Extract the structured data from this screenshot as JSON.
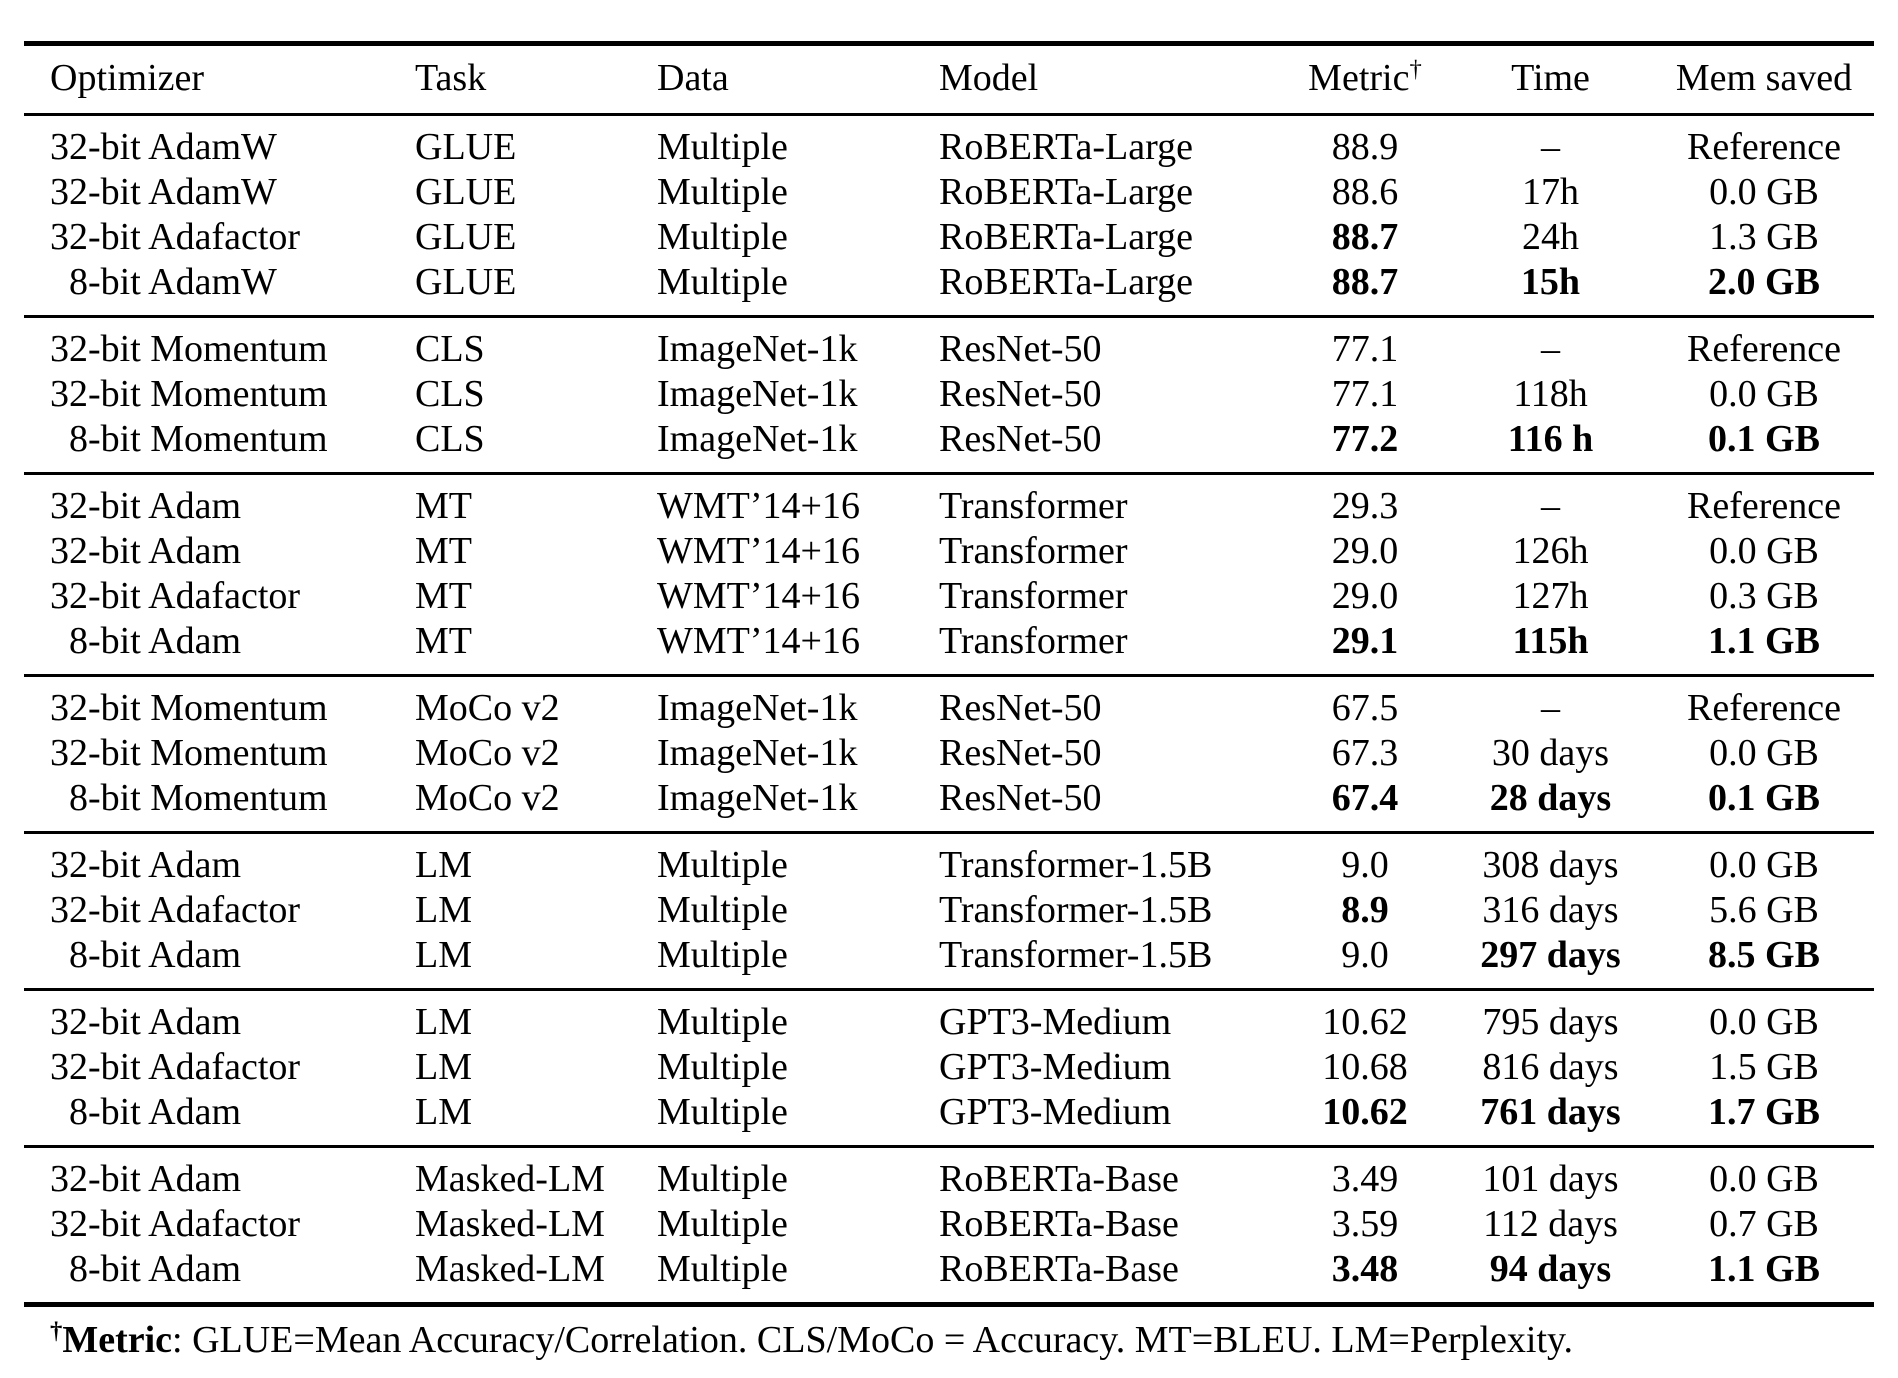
{
  "table": {
    "columns": [
      {
        "label": "Optimizer",
        "align": "left"
      },
      {
        "label": "Task",
        "align": "left"
      },
      {
        "label": "Data",
        "align": "left"
      },
      {
        "label": "Model",
        "align": "left"
      },
      {
        "label": "Metric",
        "sup": "†",
        "align": "center"
      },
      {
        "label": "Time",
        "align": "center"
      },
      {
        "label": "Mem saved",
        "align": "center"
      }
    ],
    "groups": [
      {
        "rows": [
          {
            "indent": false,
            "cells": [
              "32-bit AdamW",
              "GLUE",
              "Multiple",
              "RoBERTa-Large",
              "88.9",
              "–",
              "Reference"
            ],
            "bold": []
          },
          {
            "indent": false,
            "cells": [
              "32-bit AdamW",
              "GLUE",
              "Multiple",
              "RoBERTa-Large",
              "88.6",
              "17h",
              "0.0 GB"
            ],
            "bold": []
          },
          {
            "indent": false,
            "cells": [
              "32-bit Adafactor",
              "GLUE",
              "Multiple",
              "RoBERTa-Large",
              "88.7",
              "24h",
              "1.3 GB"
            ],
            "bold": [
              4
            ]
          },
          {
            "indent": true,
            "cells": [
              "8-bit AdamW",
              "GLUE",
              "Multiple",
              "RoBERTa-Large",
              "88.7",
              "15h",
              "2.0 GB"
            ],
            "bold": [
              4,
              5,
              6
            ]
          }
        ]
      },
      {
        "rows": [
          {
            "indent": false,
            "cells": [
              "32-bit Momentum",
              "CLS",
              "ImageNet-1k",
              "ResNet-50",
              "77.1",
              "–",
              "Reference"
            ],
            "bold": []
          },
          {
            "indent": false,
            "cells": [
              "32-bit Momentum",
              "CLS",
              "ImageNet-1k",
              "ResNet-50",
              "77.1",
              "118h",
              "0.0 GB"
            ],
            "bold": []
          },
          {
            "indent": true,
            "cells": [
              "8-bit Momentum",
              "CLS",
              "ImageNet-1k",
              "ResNet-50",
              "77.2",
              "116 h",
              "0.1 GB"
            ],
            "bold": [
              4,
              5,
              6
            ]
          }
        ]
      },
      {
        "rows": [
          {
            "indent": false,
            "cells": [
              "32-bit Adam",
              "MT",
              "WMT’14+16",
              "Transformer",
              "29.3",
              "–",
              "Reference"
            ],
            "bold": []
          },
          {
            "indent": false,
            "cells": [
              "32-bit Adam",
              "MT",
              "WMT’14+16",
              "Transformer",
              "29.0",
              "126h",
              "0.0 GB"
            ],
            "bold": []
          },
          {
            "indent": false,
            "cells": [
              "32-bit Adafactor",
              "MT",
              "WMT’14+16",
              "Transformer",
              "29.0",
              "127h",
              "0.3 GB"
            ],
            "bold": []
          },
          {
            "indent": true,
            "cells": [
              "8-bit Adam",
              "MT",
              "WMT’14+16",
              "Transformer",
              "29.1",
              "115h",
              "1.1 GB"
            ],
            "bold": [
              4,
              5,
              6
            ]
          }
        ]
      },
      {
        "rows": [
          {
            "indent": false,
            "cells": [
              "32-bit Momentum",
              "MoCo v2",
              "ImageNet-1k",
              "ResNet-50",
              "67.5",
              "–",
              "Reference"
            ],
            "bold": []
          },
          {
            "indent": false,
            "cells": [
              "32-bit Momentum",
              "MoCo v2",
              "ImageNet-1k",
              "ResNet-50",
              "67.3",
              "30 days",
              "0.0 GB"
            ],
            "bold": []
          },
          {
            "indent": true,
            "cells": [
              "8-bit Momentum",
              "MoCo v2",
              "ImageNet-1k",
              "ResNet-50",
              "67.4",
              "28 days",
              "0.1 GB"
            ],
            "bold": [
              4,
              5,
              6
            ]
          }
        ]
      },
      {
        "rows": [
          {
            "indent": false,
            "cells": [
              "32-bit Adam",
              "LM",
              "Multiple",
              "Transformer-1.5B",
              "9.0",
              "308 days",
              "0.0 GB"
            ],
            "bold": []
          },
          {
            "indent": false,
            "cells": [
              "32-bit Adafactor",
              "LM",
              "Multiple",
              "Transformer-1.5B",
              "8.9",
              "316 days",
              "5.6 GB"
            ],
            "bold": [
              4
            ]
          },
          {
            "indent": true,
            "cells": [
              "8-bit Adam",
              "LM",
              "Multiple",
              "Transformer-1.5B",
              "9.0",
              "297 days",
              "8.5 GB"
            ],
            "bold": [
              5,
              6
            ]
          }
        ]
      },
      {
        "rows": [
          {
            "indent": false,
            "cells": [
              "32-bit Adam",
              "LM",
              "Multiple",
              "GPT3-Medium",
              "10.62",
              "795 days",
              "0.0 GB"
            ],
            "bold": []
          },
          {
            "indent": false,
            "cells": [
              "32-bit Adafactor",
              "LM",
              "Multiple",
              "GPT3-Medium",
              "10.68",
              "816 days",
              "1.5 GB"
            ],
            "bold": []
          },
          {
            "indent": true,
            "cells": [
              "8-bit Adam",
              "LM",
              "Multiple",
              "GPT3-Medium",
              "10.62",
              "761 days",
              "1.7 GB"
            ],
            "bold": [
              4,
              5,
              6
            ]
          }
        ]
      },
      {
        "rows": [
          {
            "indent": false,
            "cells": [
              "32-bit Adam",
              "Masked-LM",
              "Multiple",
              "RoBERTa-Base",
              "3.49",
              "101 days",
              "0.0 GB"
            ],
            "bold": []
          },
          {
            "indent": false,
            "cells": [
              "32-bit Adafactor",
              "Masked-LM",
              "Multiple",
              "RoBERTa-Base",
              "3.59",
              "112 days",
              "0.7 GB"
            ],
            "bold": []
          },
          {
            "indent": true,
            "cells": [
              "8-bit Adam",
              "Masked-LM",
              "Multiple",
              "RoBERTa-Base",
              "3.48",
              "94 days",
              "1.1 GB"
            ],
            "bold": [
              4,
              5,
              6
            ]
          }
        ]
      }
    ]
  },
  "footnote": {
    "dagger": "†",
    "term": "Metric",
    "text": ": GLUE=Mean Accuracy/Correlation. CLS/MoCo = Accuracy. MT=BLEU. LM=Perplexity."
  }
}
